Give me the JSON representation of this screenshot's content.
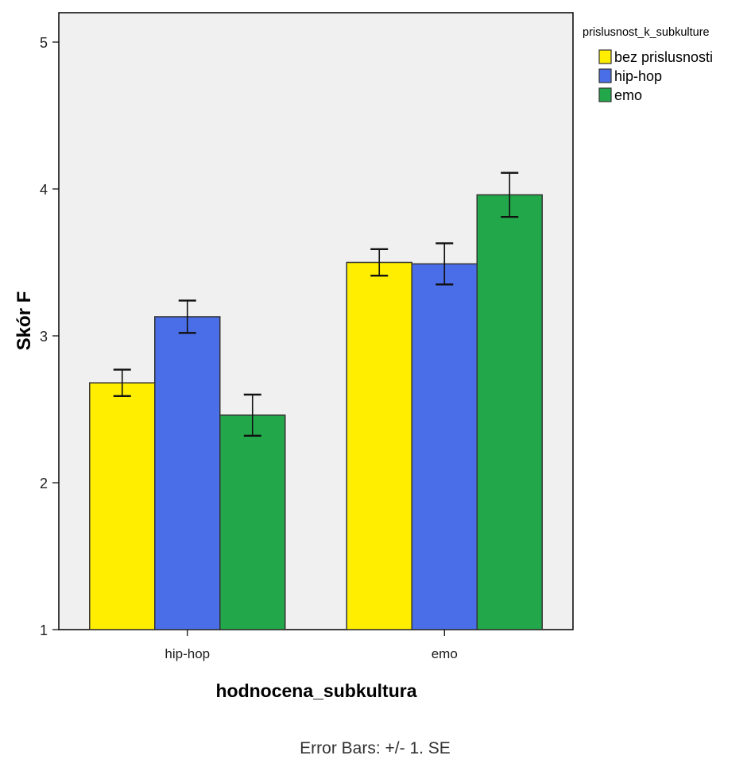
{
  "chart_data": {
    "type": "bar",
    "title": "",
    "xlabel": "hodnocena_subkultura",
    "ylabel": "Skór F",
    "ylim": [
      1,
      5.2
    ],
    "yticks": [
      "1",
      "2",
      "3",
      "4",
      "5"
    ],
    "grid": false,
    "legend_position": "top-right",
    "legend_title": "prislusnost_k_subkulture",
    "categories": [
      "hip-hop",
      "emo"
    ],
    "series": [
      {
        "name": "bez prislusnosti",
        "color": "#ffee00",
        "values": [
          2.68,
          3.5
        ],
        "se": [
          0.09,
          0.09
        ]
      },
      {
        "name": "hip-hop",
        "color": "#4a6ee8",
        "values": [
          3.13,
          3.49
        ],
        "se": [
          0.11,
          0.14
        ]
      },
      {
        "name": "emo",
        "color": "#22a84a",
        "values": [
          2.46,
          3.96
        ],
        "se": [
          0.14,
          0.15
        ]
      }
    ],
    "footnote": "Error Bars: +/- 1. SE"
  }
}
